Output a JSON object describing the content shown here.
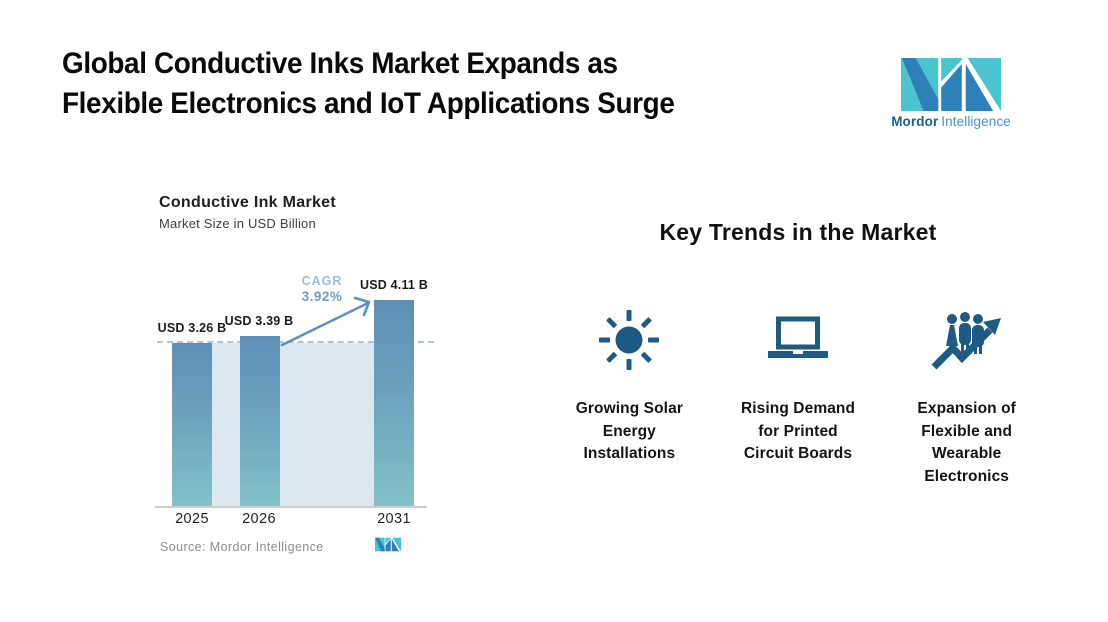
{
  "header": {
    "title_lines": [
      "Global Conductive Inks Market Expands as",
      "Flexible Electronics and IoT Applications Surge"
    ]
  },
  "brand": {
    "logo_text_bold": "Mordor",
    "logo_text_light": "Intelligence"
  },
  "chart": {
    "title": "Conductive Ink Market",
    "subtitle": "Market Size in USD Billion",
    "cagr_label": "CAGR",
    "cagr_value": "3.92%",
    "bar_labels": [
      "USD 3.26 B",
      "USD 3.39 B",
      "USD 4.11 B"
    ],
    "year_labels": [
      "2025",
      "2026",
      "2031"
    ],
    "source": "Source: Mordor Intelligence"
  },
  "chart_data": {
    "type": "bar",
    "title": "Conductive Ink Market",
    "subtitle": "Market Size in USD Billion",
    "unit": "USD Billion",
    "categories": [
      "2025",
      "2026",
      "2031"
    ],
    "values": [
      3.26,
      3.39,
      4.11
    ],
    "value_labels": [
      "USD 3.26 B",
      "USD 3.39 B",
      "USD 4.11 B"
    ],
    "xlabel": "",
    "ylabel": "Market Size in USD Billion",
    "ylim": [
      0,
      4.5
    ],
    "grid": false,
    "legend": "none",
    "reference_line": {
      "y": 3.26,
      "style": "dashed",
      "note": "horizontal dashed guide at 2025 bar top"
    },
    "annotations": [
      {
        "text": "CAGR 3.92%",
        "type": "growth-arrow",
        "from": "2026",
        "to": "2031"
      }
    ],
    "source": "Source: Mordor Intelligence"
  },
  "trends": {
    "heading": "Key Trends in the Market",
    "items": [
      {
        "icon": "sun-icon",
        "label_lines": [
          "Growing Solar",
          "Energy",
          "Installations"
        ]
      },
      {
        "icon": "laptop-icon",
        "label_lines": [
          "Rising Demand",
          "for Printed",
          "Circuit Boards"
        ]
      },
      {
        "icon": "people-growth-icon",
        "label_lines": [
          "Expansion of",
          "Flexible and",
          "Wearable",
          "Electronics"
        ]
      }
    ]
  },
  "colors": {
    "bar_gradient_top": "#5E8EB6",
    "bar_gradient_bottom": "#82C2C8",
    "area_fill": "#DCE8F1",
    "dashed_line": "#A9C6DE",
    "arrow": "#5D90C5",
    "cagr_label_text": "#9CBDDC",
    "cagr_value_text": "#6F9CC9",
    "trend_icon_blue": "#1D5B84",
    "brand_teal": "#4BC4D0",
    "brand_blue": "#2F7FB9",
    "source_text": "#8D8D8D"
  }
}
